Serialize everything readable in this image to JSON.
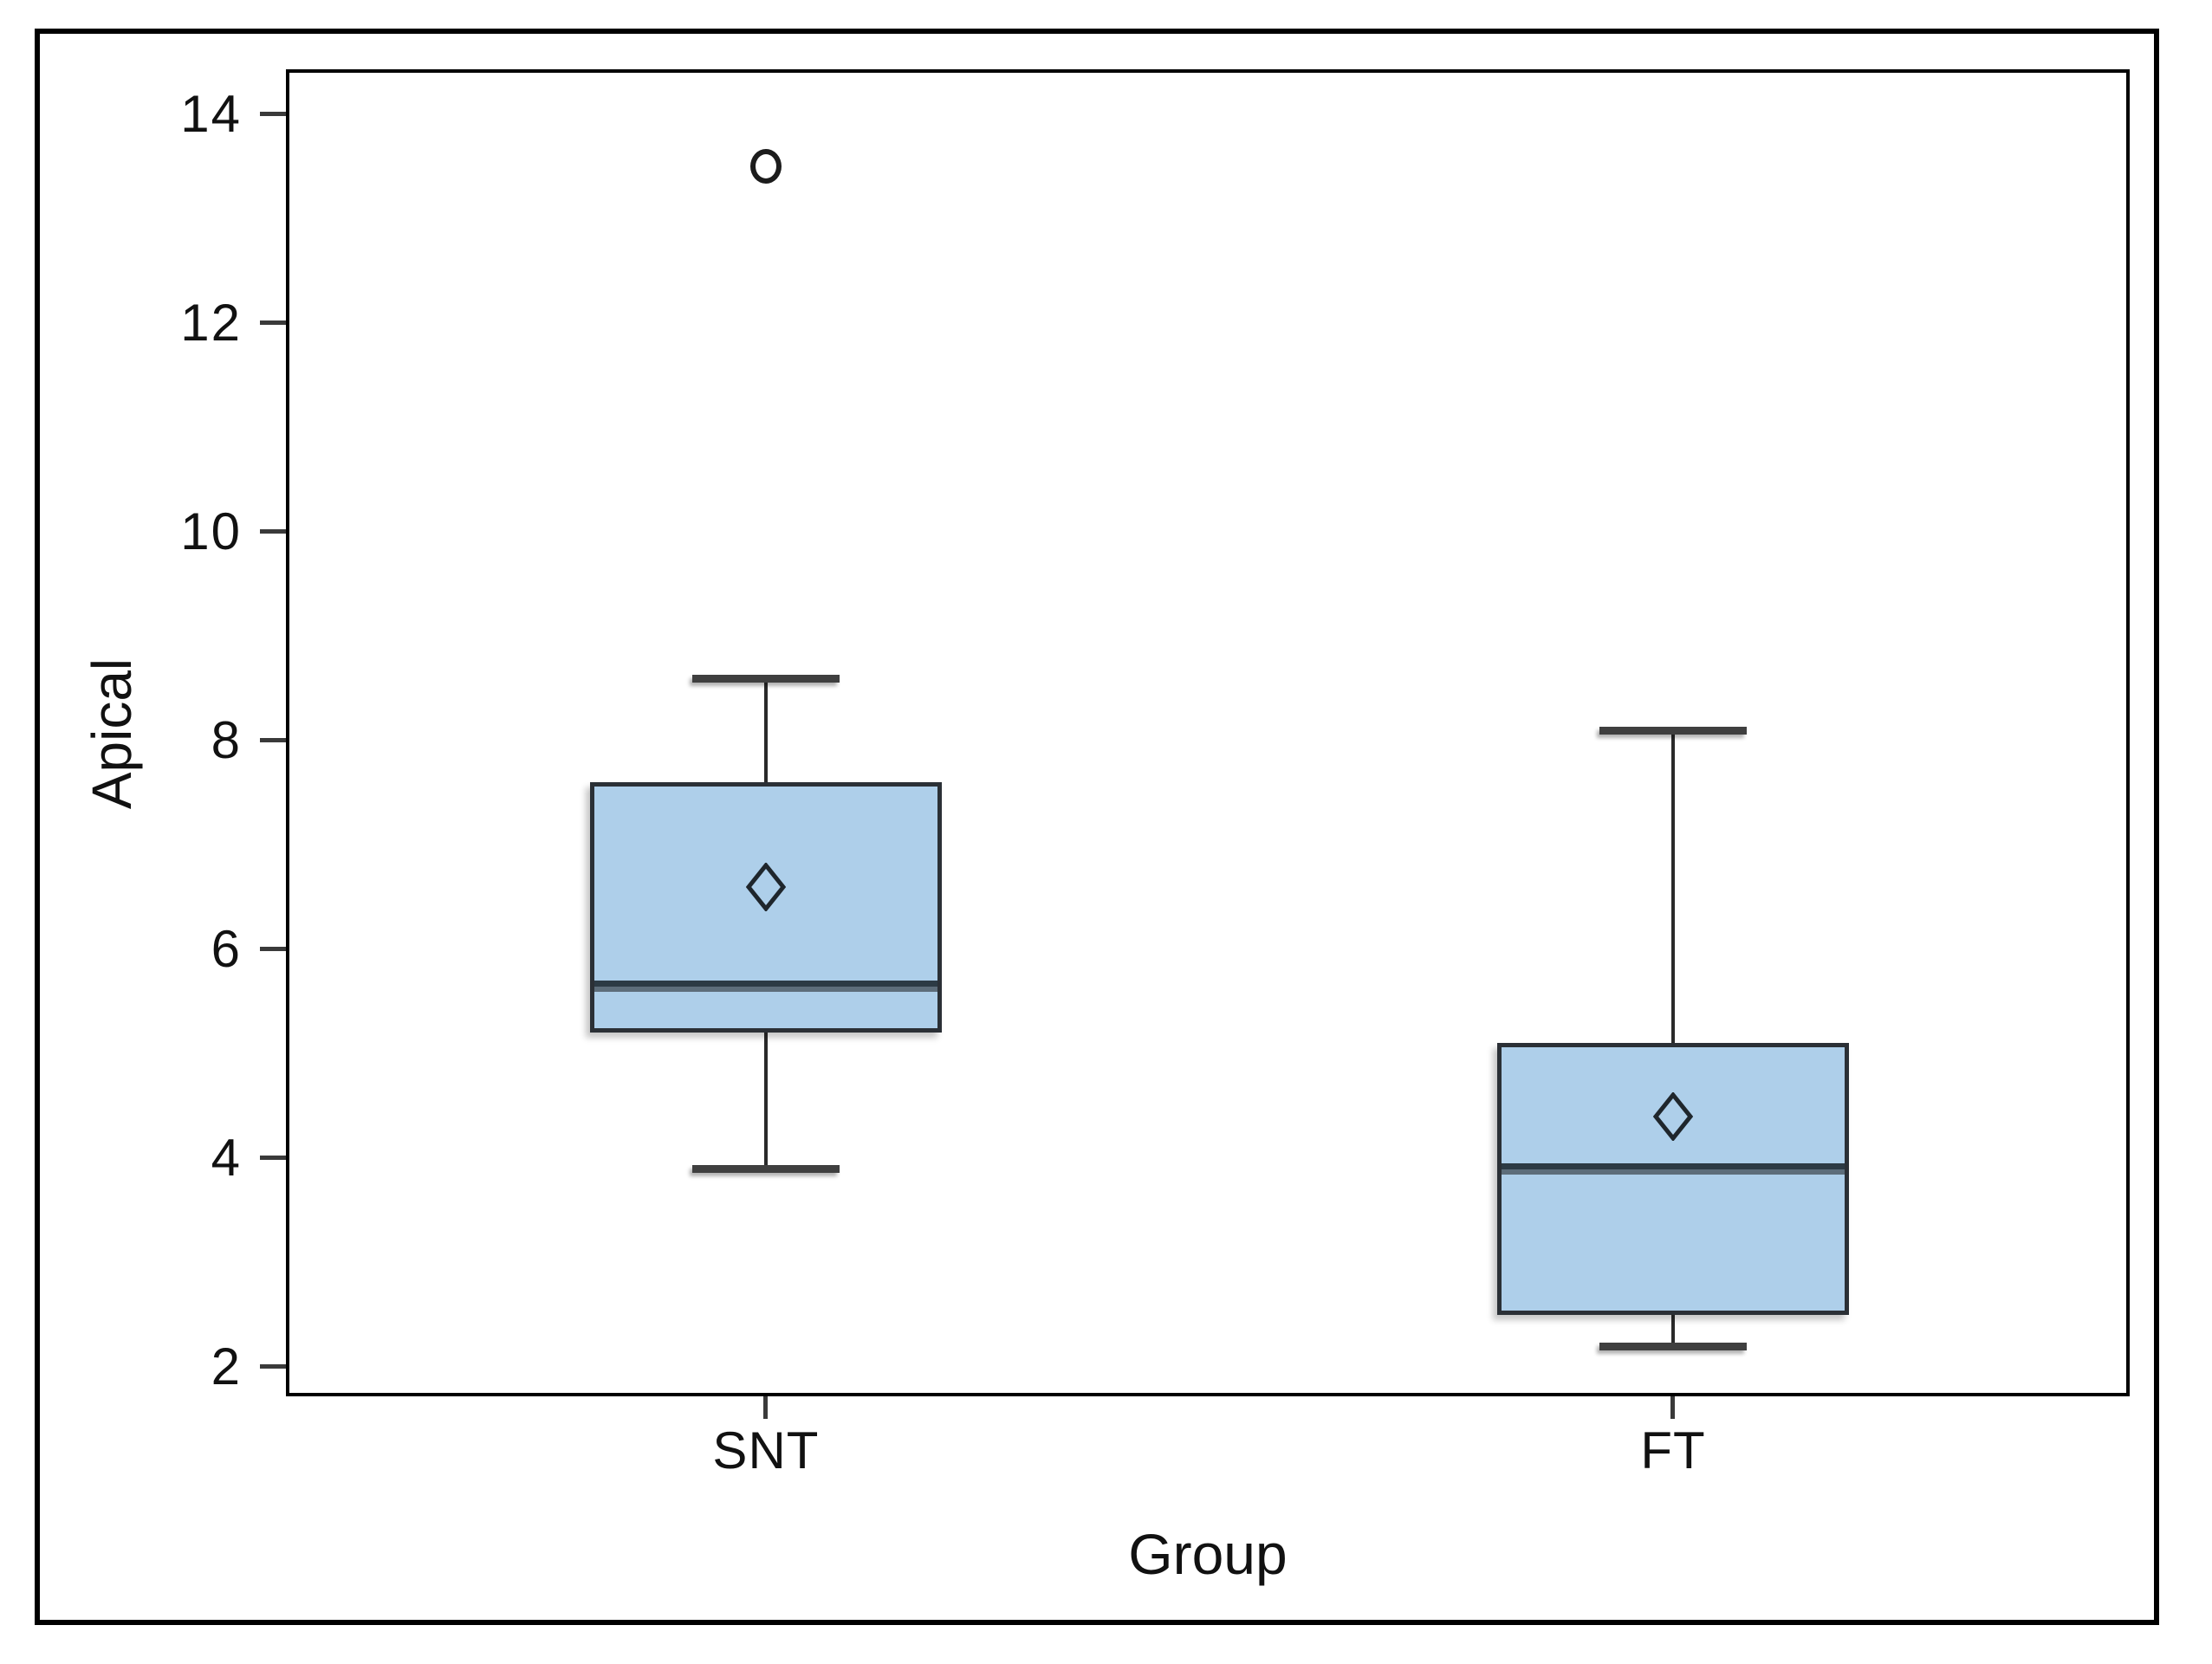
{
  "figure": {
    "background": "#ffffff",
    "outer_border_color": "#000000",
    "plot_frame_color": "#000000"
  },
  "colors": {
    "box_fill": "#AECFEA",
    "box_border": "#2B3036",
    "median_dark": "#2C3A44",
    "median_light": "#5D6D7A",
    "whisker": "#2A2A2A",
    "cap": "#3F3F3F",
    "tick": "#3A3A3A",
    "text": "#111111",
    "mean_marker_stroke": "#1F262C",
    "outlier_stroke": "#1C1C1C"
  },
  "chart_data": {
    "type": "box",
    "title": "",
    "xlabel": "Group",
    "ylabel": "Apical",
    "x_axis": {
      "label": "Group",
      "categories": [
        "SNT",
        "FT"
      ]
    },
    "y_axis": {
      "label": "Apical",
      "ticks": [
        14,
        12,
        10,
        8,
        6,
        4,
        2
      ],
      "range": [
        1.75,
        14.4
      ],
      "grid": false
    },
    "legend": "none",
    "series": [
      {
        "name": "SNT",
        "whisker_low": 3.9,
        "q1": 5.2,
        "median": 5.65,
        "q3": 7.6,
        "whisker_high": 8.6,
        "mean": 6.6,
        "outliers": [
          13.5
        ]
      },
      {
        "name": "FT",
        "whisker_low": 2.2,
        "q1": 2.5,
        "median": 3.9,
        "q3": 5.1,
        "whisker_high": 8.1,
        "mean": 4.4,
        "outliers": []
      }
    ]
  }
}
